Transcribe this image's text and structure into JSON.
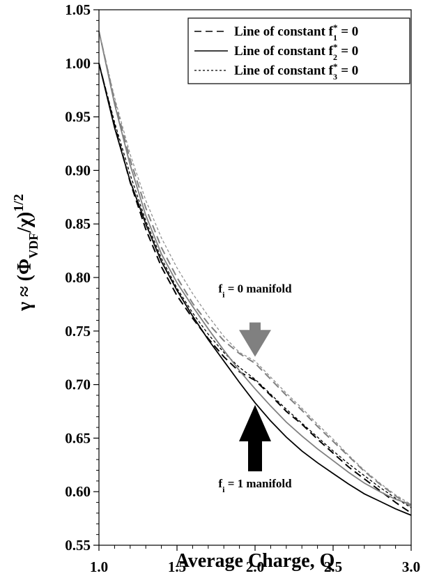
{
  "chart_data": {
    "type": "line",
    "xlabel": "Average Charge, Q",
    "ylabel_main": "γ ≈ (Φ",
    "ylabel_sub": "VDF",
    "ylabel_rest": "/χ)",
    "ylabel_sup": "1/2",
    "xlim": [
      1.0,
      3.0
    ],
    "ylim": [
      0.55,
      1.05
    ],
    "x_ticks": [
      "1.0",
      "1.5",
      "2.0",
      "2.5",
      "3.0"
    ],
    "x_tick_values": [
      1.0,
      1.5,
      2.0,
      2.5,
      3.0
    ],
    "y_ticks": [
      "0.55",
      "0.60",
      "0.65",
      "0.70",
      "0.75",
      "0.80",
      "0.85",
      "0.90",
      "0.95",
      "1.00",
      "1.05"
    ],
    "y_tick_values": [
      0.55,
      0.6,
      0.65,
      0.7,
      0.75,
      0.8,
      0.85,
      0.9,
      0.95,
      1.0,
      1.05
    ],
    "grid": false,
    "legend_position": "top-right",
    "legend": [
      {
        "prefix": "Line of constant f",
        "sub": "1",
        "sup": "*",
        "suffix": " = 0",
        "style": "long-dash"
      },
      {
        "prefix": "Line of constant f",
        "sub": "2",
        "sup": "*",
        "suffix": " = 0",
        "style": "solid"
      },
      {
        "prefix": "Line of constant f",
        "sub": "3",
        "sup": "*",
        "suffix": " = 0",
        "style": "short-dash"
      }
    ],
    "series": [
      {
        "manifold": "f_i = 1",
        "style": "long-dash",
        "color": "#000000",
        "x": [
          1.0,
          1.1,
          1.2,
          1.3,
          1.4,
          1.5,
          1.6,
          1.7,
          1.8,
          1.9,
          2.0,
          2.1,
          2.2,
          2.3,
          2.4,
          2.5,
          2.6,
          2.7,
          2.8,
          2.9,
          3.0
        ],
        "y": [
          1.0,
          0.942,
          0.889,
          0.845,
          0.81,
          0.783,
          0.762,
          0.743,
          0.726,
          0.712,
          0.704,
          0.69,
          0.675,
          0.663,
          0.649,
          0.636,
          0.623,
          0.612,
          0.601,
          0.59,
          0.58
        ]
      },
      {
        "manifold": "f_i = 1",
        "style": "solid",
        "color": "#000000",
        "x": [
          1.0,
          1.1,
          1.2,
          1.3,
          1.4,
          1.5,
          1.6,
          1.7,
          1.8,
          1.9,
          2.0,
          2.1,
          2.2,
          2.3,
          2.4,
          2.5,
          2.6,
          2.7,
          2.8,
          2.9,
          3.0
        ],
        "y": [
          1.0,
          0.94,
          0.89,
          0.85,
          0.815,
          0.788,
          0.764,
          0.742,
          0.722,
          0.702,
          0.683,
          0.666,
          0.651,
          0.638,
          0.627,
          0.617,
          0.607,
          0.598,
          0.591,
          0.584,
          0.578
        ]
      },
      {
        "manifold": "f_i = 1",
        "style": "short-dash",
        "color": "#000000",
        "x": [
          1.0,
          1.1,
          1.2,
          1.3,
          1.4,
          1.5,
          1.6,
          1.7,
          1.8,
          1.9,
          2.0,
          2.1,
          2.2,
          2.3,
          2.4,
          2.5,
          2.6,
          2.7,
          2.8,
          2.9,
          3.0
        ],
        "y": [
          1.0,
          0.945,
          0.896,
          0.853,
          0.818,
          0.79,
          0.767,
          0.747,
          0.73,
          0.716,
          0.705,
          0.691,
          0.677,
          0.664,
          0.651,
          0.638,
          0.626,
          0.615,
          0.604,
          0.594,
          0.585
        ]
      },
      {
        "manifold": "f_i = 0",
        "style": "long-dash",
        "color": "#808080",
        "x": [
          1.0,
          1.1,
          1.2,
          1.3,
          1.4,
          1.5,
          1.6,
          1.7,
          1.8,
          1.9,
          2.0,
          2.1,
          2.2,
          2.3,
          2.4,
          2.5,
          2.6,
          2.7,
          2.8,
          2.9,
          3.0
        ],
        "y": [
          1.03,
          0.965,
          0.91,
          0.865,
          0.828,
          0.8,
          0.776,
          0.757,
          0.741,
          0.729,
          0.72,
          0.705,
          0.69,
          0.676,
          0.661,
          0.647,
          0.633,
          0.619,
          0.607,
          0.596,
          0.586
        ]
      },
      {
        "manifold": "f_i = 0",
        "style": "solid",
        "color": "#808080",
        "x": [
          1.0,
          1.1,
          1.2,
          1.3,
          1.4,
          1.5,
          1.6,
          1.7,
          1.8,
          1.9,
          2.0,
          2.1,
          2.2,
          2.3,
          2.4,
          2.5,
          2.6,
          2.7,
          2.8,
          2.9,
          3.0
        ],
        "y": [
          1.03,
          0.962,
          0.905,
          0.858,
          0.822,
          0.795,
          0.773,
          0.752,
          0.732,
          0.713,
          0.696,
          0.68,
          0.665,
          0.652,
          0.64,
          0.629,
          0.618,
          0.608,
          0.6,
          0.593,
          0.588
        ]
      },
      {
        "manifold": "f_i = 0",
        "style": "short-dash",
        "color": "#909090",
        "x": [
          1.0,
          1.1,
          1.2,
          1.3,
          1.4,
          1.5,
          1.6,
          1.7,
          1.8,
          1.9,
          2.0,
          2.1,
          2.2,
          2.3,
          2.4,
          2.5,
          2.6,
          2.7,
          2.8,
          2.9,
          3.0
        ],
        "y": [
          1.03,
          0.968,
          0.915,
          0.872,
          0.837,
          0.809,
          0.785,
          0.764,
          0.745,
          0.73,
          0.722,
          0.707,
          0.692,
          0.678,
          0.663,
          0.649,
          0.634,
          0.62,
          0.608,
          0.597,
          0.588
        ]
      }
    ],
    "annotations": [
      {
        "prefix": "f",
        "sub": "i",
        "suffix": " = 0 manifold",
        "arrow": "down",
        "arrow_color": "#808080",
        "x": 2.0
      },
      {
        "prefix": "f",
        "sub": "i",
        "suffix": " = 1 manifold",
        "arrow": "up",
        "arrow_color": "#000000",
        "x": 2.0
      }
    ]
  }
}
